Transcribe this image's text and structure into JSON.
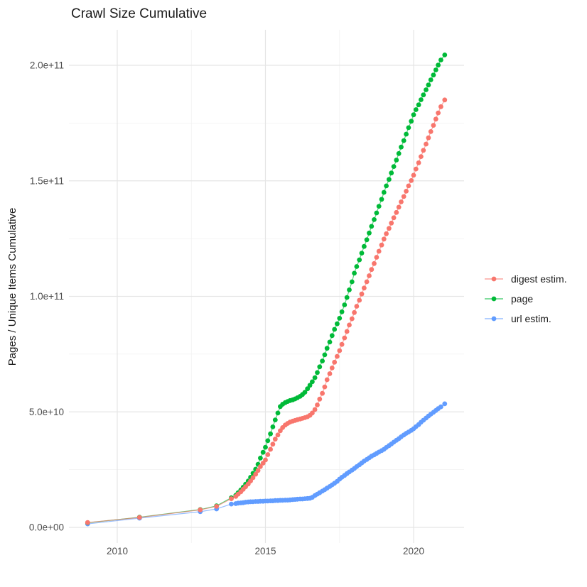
{
  "title": "Crawl Size Cumulative",
  "y_axis": {
    "label": "Pages / Unique Items Cumulative",
    "tick_values": [
      0,
      50,
      100,
      150,
      200
    ],
    "tick_labels": [
      "0.0e+00",
      "5.0e+10",
      "1.0e+11",
      "1.5e+11",
      "2.0e+11"
    ],
    "minor_tick_values": [
      25,
      75,
      125,
      175
    ],
    "unit_multiplier": 1000000000
  },
  "x_axis": {
    "label": "",
    "tick_values": [
      2010,
      2015,
      2020
    ],
    "tick_labels": [
      "2010",
      "2015",
      "2020"
    ],
    "minor_tick_values": [
      2012.5,
      2017.5
    ]
  },
  "legend": {
    "position": "right",
    "items": [
      {
        "label": "digest estim.",
        "color": "#F8766D"
      },
      {
        "label": "page",
        "color": "#00BA38"
      },
      {
        "label": "url estim.",
        "color": "#619CFF"
      }
    ]
  },
  "colors": {
    "background": "#ffffff",
    "grid_major": "#e5e5e5",
    "grid_minor": "#f2f2f2",
    "digest": "#F8766D",
    "page": "#00BA38",
    "url": "#619CFF",
    "text_dark": "#1a1a1a",
    "text_tick": "#4d4d4d"
  },
  "chart_data": {
    "type": "scatter",
    "style": "points-with-line",
    "title": "Crawl Size Cumulative",
    "xlabel": "",
    "ylabel": "Pages / Unique Items Cumulative",
    "x_unit": "year (crawl date)",
    "y_unit": "pages / unique items, values in billions (1e9)",
    "xlim": [
      2008.4,
      2021.7
    ],
    "ylim_billions": [
      -7,
      215
    ],
    "grid": true,
    "legend_position": "right",
    "series": [
      {
        "name": "digest estim.",
        "color": "#F8766D",
        "points": [
          [
            2009.0,
            2.1
          ],
          [
            2010.75,
            4.3
          ],
          [
            2012.8,
            7.6
          ],
          [
            2013.35,
            9.1
          ],
          [
            2013.85,
            12.4
          ],
          [
            2014.0,
            13.4
          ],
          [
            2014.08,
            14.4
          ],
          [
            2014.17,
            15.4
          ],
          [
            2014.25,
            16.5
          ],
          [
            2014.33,
            17.6
          ],
          [
            2014.42,
            18.8
          ],
          [
            2014.5,
            20.1
          ],
          [
            2014.58,
            21.5
          ],
          [
            2014.67,
            23.0
          ],
          [
            2014.75,
            24.6
          ],
          [
            2014.83,
            26.3
          ],
          [
            2014.92,
            27.8
          ],
          [
            2015.0,
            29.2
          ],
          [
            2015.08,
            31.5
          ],
          [
            2015.17,
            33.8
          ],
          [
            2015.25,
            36.0
          ],
          [
            2015.33,
            38.2
          ],
          [
            2015.42,
            40.0
          ],
          [
            2015.5,
            41.8
          ],
          [
            2015.58,
            43.2
          ],
          [
            2015.67,
            44.3
          ],
          [
            2015.75,
            45.0
          ],
          [
            2015.83,
            45.6
          ],
          [
            2015.92,
            46.0
          ],
          [
            2016.0,
            46.3
          ],
          [
            2016.08,
            46.6
          ],
          [
            2016.17,
            46.9
          ],
          [
            2016.25,
            47.2
          ],
          [
            2016.33,
            47.5
          ],
          [
            2016.42,
            47.9
          ],
          [
            2016.5,
            48.5
          ],
          [
            2016.58,
            49.5
          ],
          [
            2016.67,
            51.0
          ],
          [
            2016.75,
            53.0
          ],
          [
            2016.83,
            55.5
          ],
          [
            2016.92,
            58.0
          ],
          [
            2017.0,
            60.8
          ],
          [
            2017.08,
            63.9
          ],
          [
            2017.17,
            66.5
          ],
          [
            2017.25,
            69.0
          ],
          [
            2017.33,
            71.5
          ],
          [
            2017.42,
            74.0
          ],
          [
            2017.5,
            76.5
          ],
          [
            2017.58,
            79.2
          ],
          [
            2017.67,
            82.0
          ],
          [
            2017.75,
            84.8
          ],
          [
            2017.83,
            87.6
          ],
          [
            2017.92,
            90.3
          ],
          [
            2018.0,
            93.0
          ],
          [
            2018.08,
            95.7
          ],
          [
            2018.17,
            98.3
          ],
          [
            2018.25,
            101.0
          ],
          [
            2018.33,
            103.6
          ],
          [
            2018.42,
            106.3
          ],
          [
            2018.5,
            108.9
          ],
          [
            2018.58,
            111.6
          ],
          [
            2018.67,
            114.2
          ],
          [
            2018.75,
            116.9
          ],
          [
            2018.83,
            119.5
          ],
          [
            2018.92,
            122.2
          ],
          [
            2019.0,
            124.8
          ],
          [
            2019.08,
            127.1
          ],
          [
            2019.17,
            129.4
          ],
          [
            2019.25,
            131.7
          ],
          [
            2019.33,
            134.0
          ],
          [
            2019.42,
            136.3
          ],
          [
            2019.5,
            138.6
          ],
          [
            2019.58,
            140.9
          ],
          [
            2019.67,
            143.2
          ],
          [
            2019.75,
            145.5
          ],
          [
            2019.83,
            147.8
          ],
          [
            2019.92,
            150.1
          ],
          [
            2020.0,
            152.4
          ],
          [
            2020.08,
            155.1
          ],
          [
            2020.17,
            157.8
          ],
          [
            2020.25,
            160.5
          ],
          [
            2020.33,
            163.2
          ],
          [
            2020.42,
            165.9
          ],
          [
            2020.5,
            168.6
          ],
          [
            2020.58,
            171.3
          ],
          [
            2020.67,
            174.0
          ],
          [
            2020.75,
            176.7
          ],
          [
            2020.83,
            179.4
          ],
          [
            2020.92,
            182.1
          ],
          [
            2021.05,
            185.0
          ]
        ]
      },
      {
        "name": "page",
        "color": "#00BA38",
        "points": [
          [
            2009.0,
            2.0
          ],
          [
            2010.75,
            4.4
          ],
          [
            2012.8,
            7.7
          ],
          [
            2013.35,
            9.3
          ],
          [
            2013.85,
            12.8
          ],
          [
            2014.0,
            13.9
          ],
          [
            2014.08,
            15.0
          ],
          [
            2014.17,
            16.2
          ],
          [
            2014.25,
            17.4
          ],
          [
            2014.33,
            18.7
          ],
          [
            2014.42,
            20.1
          ],
          [
            2014.5,
            21.7
          ],
          [
            2014.58,
            23.4
          ],
          [
            2014.67,
            25.2
          ],
          [
            2014.75,
            27.3
          ],
          [
            2014.83,
            30.0
          ],
          [
            2014.92,
            32.5
          ],
          [
            2015.0,
            34.7
          ],
          [
            2015.08,
            37.5
          ],
          [
            2015.17,
            40.5
          ],
          [
            2015.25,
            43.5
          ],
          [
            2015.33,
            46.5
          ],
          [
            2015.42,
            49.5
          ],
          [
            2015.5,
            52.3
          ],
          [
            2015.58,
            53.3
          ],
          [
            2015.67,
            54.0
          ],
          [
            2015.75,
            54.5
          ],
          [
            2015.83,
            54.9
          ],
          [
            2015.92,
            55.2
          ],
          [
            2016.0,
            55.6
          ],
          [
            2016.08,
            56.1
          ],
          [
            2016.17,
            56.7
          ],
          [
            2016.25,
            57.5
          ],
          [
            2016.33,
            58.5
          ],
          [
            2016.42,
            60.0
          ],
          [
            2016.5,
            61.5
          ],
          [
            2016.58,
            63.0
          ],
          [
            2016.67,
            64.8
          ],
          [
            2016.75,
            67.0
          ],
          [
            2016.83,
            69.5
          ],
          [
            2016.92,
            72.0
          ],
          [
            2017.0,
            74.7
          ],
          [
            2017.08,
            77.5
          ],
          [
            2017.17,
            80.2
          ],
          [
            2017.25,
            83.0
          ],
          [
            2017.33,
            85.7
          ],
          [
            2017.42,
            88.1
          ],
          [
            2017.5,
            90.5
          ],
          [
            2017.58,
            93.3
          ],
          [
            2017.67,
            96.3
          ],
          [
            2017.75,
            99.5
          ],
          [
            2017.83,
            102.8
          ],
          [
            2017.92,
            106.3
          ],
          [
            2018.0,
            110.0
          ],
          [
            2018.08,
            112.9
          ],
          [
            2018.17,
            115.8
          ],
          [
            2018.25,
            118.7
          ],
          [
            2018.33,
            121.6
          ],
          [
            2018.42,
            124.5
          ],
          [
            2018.5,
            127.4
          ],
          [
            2018.58,
            130.3
          ],
          [
            2018.67,
            133.2
          ],
          [
            2018.75,
            136.1
          ],
          [
            2018.83,
            139.0
          ],
          [
            2018.92,
            142.0
          ],
          [
            2019.0,
            145.0
          ],
          [
            2019.08,
            147.8
          ],
          [
            2019.17,
            150.6
          ],
          [
            2019.25,
            153.4
          ],
          [
            2019.33,
            156.2
          ],
          [
            2019.42,
            159.0
          ],
          [
            2019.5,
            161.8
          ],
          [
            2019.58,
            164.6
          ],
          [
            2019.67,
            167.4
          ],
          [
            2019.75,
            170.2
          ],
          [
            2019.83,
            173.0
          ],
          [
            2019.92,
            175.8
          ],
          [
            2020.0,
            178.6
          ],
          [
            2020.08,
            180.8
          ],
          [
            2020.17,
            182.9
          ],
          [
            2020.25,
            185.1
          ],
          [
            2020.33,
            187.2
          ],
          [
            2020.42,
            189.4
          ],
          [
            2020.5,
            191.5
          ],
          [
            2020.58,
            193.7
          ],
          [
            2020.67,
            195.8
          ],
          [
            2020.75,
            198.0
          ],
          [
            2020.83,
            200.1
          ],
          [
            2020.92,
            202.3
          ],
          [
            2021.05,
            204.5
          ]
        ]
      },
      {
        "name": "url estim.",
        "color": "#619CFF",
        "points": [
          [
            2009.0,
            1.5
          ],
          [
            2010.75,
            4.0
          ],
          [
            2012.8,
            6.8
          ],
          [
            2013.35,
            8.0
          ],
          [
            2013.85,
            10.1
          ],
          [
            2014.0,
            10.3
          ],
          [
            2014.08,
            10.5
          ],
          [
            2014.17,
            10.6
          ],
          [
            2014.25,
            10.7
          ],
          [
            2014.33,
            10.9
          ],
          [
            2014.42,
            11.0
          ],
          [
            2014.5,
            11.1
          ],
          [
            2014.58,
            11.1
          ],
          [
            2014.67,
            11.2
          ],
          [
            2014.75,
            11.2
          ],
          [
            2014.83,
            11.3
          ],
          [
            2014.92,
            11.3
          ],
          [
            2015.0,
            11.4
          ],
          [
            2015.08,
            11.4
          ],
          [
            2015.17,
            11.5
          ],
          [
            2015.25,
            11.5
          ],
          [
            2015.33,
            11.6
          ],
          [
            2015.42,
            11.6
          ],
          [
            2015.5,
            11.7
          ],
          [
            2015.58,
            11.7
          ],
          [
            2015.67,
            11.8
          ],
          [
            2015.75,
            11.8
          ],
          [
            2015.83,
            11.9
          ],
          [
            2015.92,
            12.0
          ],
          [
            2016.0,
            12.1
          ],
          [
            2016.08,
            12.2
          ],
          [
            2016.17,
            12.3
          ],
          [
            2016.25,
            12.3
          ],
          [
            2016.33,
            12.4
          ],
          [
            2016.42,
            12.5
          ],
          [
            2016.5,
            12.6
          ],
          [
            2016.58,
            13.0
          ],
          [
            2016.67,
            13.8
          ],
          [
            2016.75,
            14.4
          ],
          [
            2016.83,
            15.0
          ],
          [
            2016.92,
            15.7
          ],
          [
            2017.0,
            16.3
          ],
          [
            2017.08,
            17.0
          ],
          [
            2017.17,
            17.7
          ],
          [
            2017.25,
            18.4
          ],
          [
            2017.33,
            19.1
          ],
          [
            2017.42,
            19.9
          ],
          [
            2017.5,
            20.9
          ],
          [
            2017.58,
            21.7
          ],
          [
            2017.67,
            22.5
          ],
          [
            2017.75,
            23.3
          ],
          [
            2017.83,
            24.0
          ],
          [
            2017.92,
            24.8
          ],
          [
            2018.0,
            25.5
          ],
          [
            2018.08,
            26.3
          ],
          [
            2018.17,
            27.1
          ],
          [
            2018.25,
            27.9
          ],
          [
            2018.33,
            28.7
          ],
          [
            2018.42,
            29.4
          ],
          [
            2018.5,
            30.1
          ],
          [
            2018.58,
            30.8
          ],
          [
            2018.67,
            31.4
          ],
          [
            2018.75,
            32.0
          ],
          [
            2018.83,
            32.6
          ],
          [
            2018.92,
            33.2
          ],
          [
            2019.0,
            33.8
          ],
          [
            2019.08,
            34.6
          ],
          [
            2019.17,
            35.4
          ],
          [
            2019.25,
            36.1
          ],
          [
            2019.33,
            36.9
          ],
          [
            2019.42,
            37.7
          ],
          [
            2019.5,
            38.4
          ],
          [
            2019.58,
            39.2
          ],
          [
            2019.67,
            40.0
          ],
          [
            2019.75,
            40.7
          ],
          [
            2019.83,
            41.3
          ],
          [
            2019.92,
            42.0
          ],
          [
            2020.0,
            42.7
          ],
          [
            2020.08,
            43.6
          ],
          [
            2020.17,
            44.5
          ],
          [
            2020.25,
            45.5
          ],
          [
            2020.33,
            46.4
          ],
          [
            2020.42,
            47.3
          ],
          [
            2020.5,
            48.2
          ],
          [
            2020.58,
            49.0
          ],
          [
            2020.67,
            49.8
          ],
          [
            2020.75,
            50.6
          ],
          [
            2020.83,
            51.4
          ],
          [
            2020.92,
            52.2
          ],
          [
            2021.05,
            53.5
          ]
        ]
      }
    ]
  }
}
